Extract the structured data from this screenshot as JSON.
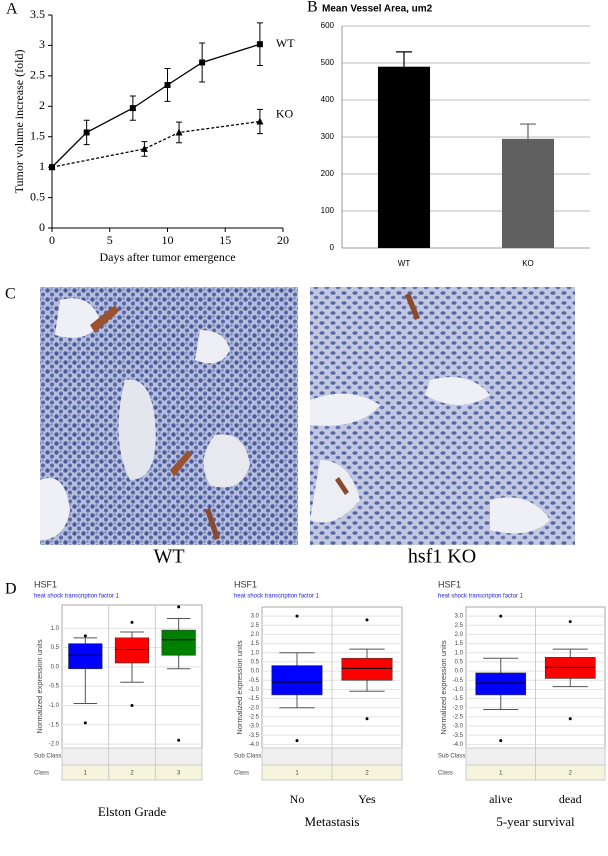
{
  "chart_data": [
    {
      "type": "line",
      "panel": "A",
      "xlabel": "Days after tumor emergence",
      "ylabel": "Tumor volume increase (fold)",
      "xlim": [
        0,
        20
      ],
      "xticks": [
        0,
        5,
        10,
        15,
        20
      ],
      "ylim": [
        0,
        3.5
      ],
      "yticks": [
        0,
        0.5,
        1,
        1.5,
        2,
        2.5,
        3,
        3.5
      ],
      "series": [
        {
          "name": "WT",
          "color": "#000000",
          "marker": "square",
          "linestyle": "solid",
          "x": [
            0,
            3,
            7,
            10,
            13,
            18
          ],
          "values": [
            1,
            1.57,
            1.97,
            2.35,
            2.72,
            3.02
          ],
          "errors": [
            0,
            0.2,
            0.2,
            0.27,
            0.32,
            0.35
          ]
        },
        {
          "name": "KO",
          "color": "#000000",
          "marker": "triangle",
          "linestyle": "dashed",
          "x": [
            0,
            8,
            11,
            18
          ],
          "values": [
            1,
            1.3,
            1.57,
            1.75
          ],
          "errors": [
            0,
            0.12,
            0.17,
            0.2
          ]
        }
      ]
    },
    {
      "type": "bar",
      "panel": "B",
      "title": "Mean Vessel Area, um2",
      "categories": [
        "WT",
        "KO"
      ],
      "values": [
        490,
        295
      ],
      "errors": [
        40,
        40
      ],
      "colors": [
        "#000000",
        "#606060"
      ],
      "ylim": [
        0,
        600
      ],
      "yticks": [
        0,
        100,
        200,
        300,
        400,
        500,
        600
      ],
      "grid": true
    },
    {
      "type": "box",
      "panel": "D",
      "title": "HSF1",
      "subtitle": "heat shock transcription factor 1",
      "ylabel": "Normalized expression units",
      "xlabel": "Elston Grade",
      "row_labels": [
        "Sub Class",
        "Class"
      ],
      "classes": [
        "1",
        "2",
        "3"
      ],
      "colors": [
        "#0000ff",
        "#ff0000",
        "#008000"
      ],
      "ylim": [
        -2.1,
        1.6
      ],
      "yticks": [
        {
          "value": 1.0,
          "label": "1.0"
        },
        {
          "value": 0.5,
          "label": "0.5"
        },
        {
          "value": 0.0,
          "label": "0.0"
        },
        {
          "value": -0.5,
          "label": "-0.5"
        },
        {
          "value": -1.0,
          "label": "-1.0"
        },
        {
          "value": -1.5,
          "label": "-1.5"
        },
        {
          "value": -2.0,
          "label": "-2.0"
        }
      ],
      "boxes": [
        {
          "whisker_low": -0.95,
          "q1": -0.05,
          "median": 0.3,
          "q3": 0.6,
          "whisker_high": 0.75,
          "outliers": [
            0.8,
            -1.45
          ]
        },
        {
          "whisker_low": -0.4,
          "q1": 0.1,
          "median": 0.45,
          "q3": 0.75,
          "whisker_high": 0.9,
          "outliers": [
            1.15,
            -1.0
          ]
        },
        {
          "whisker_low": -0.05,
          "q1": 0.3,
          "median": 0.7,
          "q3": 0.95,
          "whisker_high": 1.25,
          "outliers": [
            1.55,
            -1.9
          ]
        }
      ]
    },
    {
      "type": "box",
      "title": "HSF1",
      "subtitle": "heat shock transcription factor 1",
      "ylabel": "Normalized expression units",
      "xlabel": "Metastasis",
      "row_labels": [
        "Sub Class",
        "Class"
      ],
      "classes": [
        "1",
        "2"
      ],
      "groups": [
        "No",
        "Yes"
      ],
      "colors": [
        "#0000ff",
        "#ff0000"
      ],
      "ylim": [
        -4.2,
        3.5
      ],
      "yticks": [
        {
          "value": 3.0,
          "label": "3.0"
        },
        {
          "value": 2.5,
          "label": "2.5"
        },
        {
          "value": 2.0,
          "label": "2.0"
        },
        {
          "value": 1.5,
          "label": "1.5"
        },
        {
          "value": 1.0,
          "label": "1.0"
        },
        {
          "value": 0.5,
          "label": "0.5"
        },
        {
          "value": 0.0,
          "label": "0.0"
        },
        {
          "value": -0.5,
          "label": "-0.5"
        },
        {
          "value": -1.0,
          "label": "-1.0"
        },
        {
          "value": -1.5,
          "label": "-1.5"
        },
        {
          "value": -2.0,
          "label": "-2.0"
        },
        {
          "value": -2.5,
          "label": "-2.5"
        },
        {
          "value": -3.0,
          "label": "-3.0"
        },
        {
          "value": -3.5,
          "label": "-3.5"
        },
        {
          "value": -4.0,
          "label": "-4.0"
        }
      ],
      "boxes": [
        {
          "whisker_low": -2.0,
          "q1": -1.3,
          "median": -0.6,
          "q3": 0.3,
          "whisker_high": 1.0,
          "outliers": [
            3.0,
            -3.8
          ]
        },
        {
          "whisker_low": -1.1,
          "q1": -0.5,
          "median": 0.15,
          "q3": 0.7,
          "whisker_high": 1.2,
          "outliers": [
            2.8,
            -2.6
          ]
        }
      ]
    },
    {
      "type": "box",
      "title": "HSF1",
      "subtitle": "heat shock transcription factor 1",
      "ylabel": "Normalized expression units",
      "xlabel": "5-year survival",
      "row_labels": [
        "Sub Class",
        "Class"
      ],
      "classes": [
        "1",
        "2"
      ],
      "groups": [
        "alive",
        "dead"
      ],
      "colors": [
        "#0000ff",
        "#ff0000"
      ],
      "ylim": [
        -4.2,
        3.5
      ],
      "yticks": [
        {
          "value": 3.0,
          "label": "3.0"
        },
        {
          "value": 2.5,
          "label": "2.5"
        },
        {
          "value": 2.0,
          "label": "2.0"
        },
        {
          "value": 1.5,
          "label": "1.5"
        },
        {
          "value": 1.0,
          "label": "1.0"
        },
        {
          "value": 0.5,
          "label": "0.5"
        },
        {
          "value": 0.0,
          "label": "0.0"
        },
        {
          "value": -0.5,
          "label": "-0.5"
        },
        {
          "value": -1.0,
          "label": "-1.0"
        },
        {
          "value": -1.5,
          "label": "-1.5"
        },
        {
          "value": -2.0,
          "label": "-2.0"
        },
        {
          "value": -2.5,
          "label": "-2.5"
        },
        {
          "value": -3.0,
          "label": "-3.0"
        },
        {
          "value": -3.5,
          "label": "-3.5"
        },
        {
          "value": -4.0,
          "label": "-4.0"
        }
      ],
      "boxes": [
        {
          "whisker_low": -2.1,
          "q1": -1.3,
          "median": -0.65,
          "q3": -0.1,
          "whisker_high": 0.7,
          "outliers": [
            3.0,
            -3.8
          ]
        },
        {
          "whisker_low": -0.85,
          "q1": -0.4,
          "median": 0.2,
          "q3": 0.75,
          "whisker_high": 1.2,
          "outliers": [
            2.7,
            -2.6
          ]
        }
      ]
    }
  ],
  "panel_c": {
    "panel": "C",
    "images": [
      {
        "caption": "WT"
      },
      {
        "caption": "hsf1 KO"
      }
    ]
  }
}
